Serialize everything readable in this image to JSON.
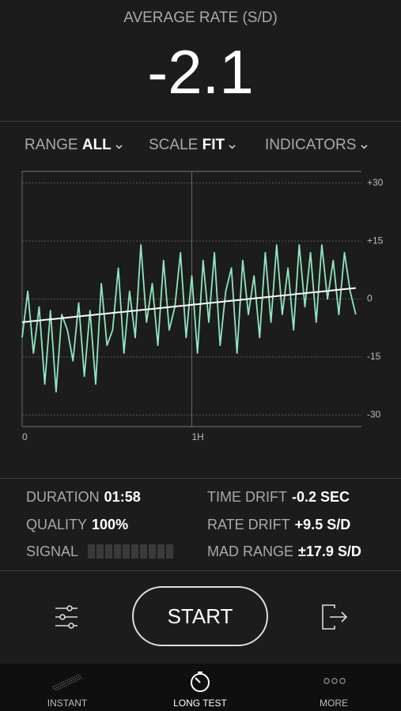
{
  "header": {
    "label": "AVERAGE RATE (S/D)",
    "value": "-2.1"
  },
  "controls": [
    {
      "label": "RANGE",
      "value": "ALL"
    },
    {
      "label": "SCALE",
      "value": "FIT"
    },
    {
      "label": "INDICATORS"
    }
  ],
  "chart_data": {
    "type": "line",
    "x": [
      0,
      2,
      4,
      6,
      8,
      10,
      12,
      14,
      16,
      18,
      20,
      22,
      24,
      26,
      28,
      30,
      32,
      34,
      36,
      38,
      40,
      42,
      44,
      46,
      48,
      50,
      52,
      54,
      56,
      58,
      60,
      62,
      64,
      66,
      68,
      70,
      72,
      74,
      76,
      78,
      80,
      82,
      84,
      86,
      88,
      90,
      92,
      94,
      96,
      98,
      100,
      102,
      104,
      106,
      108,
      110,
      112,
      114,
      116,
      118
    ],
    "series": [
      {
        "color": "#8fe6c0",
        "values": [
          -10,
          2,
          -14,
          -2,
          -22,
          -3,
          -24,
          -4,
          -8,
          -16,
          -1,
          -20,
          -3,
          -22,
          4,
          -12,
          -8,
          8,
          -14,
          2,
          -10,
          14,
          -6,
          4,
          -12,
          10,
          -8,
          -2,
          12,
          -10,
          6,
          -14,
          10,
          -6,
          12,
          -12,
          2,
          8,
          -14,
          10,
          -4,
          6,
          -10,
          12,
          -6,
          14,
          -4,
          8,
          -8,
          14,
          -2,
          12,
          -6,
          14,
          0,
          10,
          -4,
          12,
          2,
          -4
        ]
      },
      {
        "color": "#ffffff",
        "values": [
          -6,
          -5.85,
          -5.7,
          -5.55,
          -5.4,
          -5.25,
          -5.1,
          -4.95,
          -4.8,
          -4.65,
          -4.5,
          -4.35,
          -4.2,
          -4.05,
          -3.9,
          -3.75,
          -3.6,
          -3.45,
          -3.3,
          -3.15,
          -3,
          -2.85,
          -2.7,
          -2.55,
          -2.4,
          -2.25,
          -2.1,
          -1.95,
          -1.8,
          -1.65,
          -1.5,
          -1.35,
          -1.2,
          -1.05,
          -0.9,
          -0.75,
          -0.6,
          -0.45,
          -0.3,
          -0.15,
          0,
          0.15,
          0.3,
          0.45,
          0.6,
          0.75,
          0.9,
          1.05,
          1.2,
          1.35,
          1.5,
          1.65,
          1.8,
          1.95,
          2.1,
          2.25,
          2.4,
          2.55,
          2.7,
          2.85
        ]
      }
    ],
    "xlim": [
      0,
      120
    ],
    "xticks": [
      {
        "value": 0,
        "label": "0"
      },
      {
        "value": 60,
        "label": "1H"
      }
    ],
    "ylim": [
      -33,
      33
    ],
    "yticks": [
      {
        "value": 30,
        "label": "+30"
      },
      {
        "value": 15,
        "label": "+15"
      },
      0,
      -15,
      -30
    ],
    "grid": true
  },
  "stats": [
    {
      "label": "DURATION",
      "value": "01:58"
    },
    {
      "label": "TIME DRIFT",
      "value": "-0.2 SEC"
    },
    {
      "label": "QUALITY",
      "value": "100%"
    },
    {
      "label": "RATE DRIFT",
      "value": "+9.5 S/D"
    },
    {
      "label": "SIGNAL"
    },
    {
      "label": "MAD RANGE",
      "value": "±17.9 S/D"
    }
  ],
  "button": "START",
  "tabs": [
    "INSTANT",
    "LONG TEST",
    "MORE"
  ]
}
